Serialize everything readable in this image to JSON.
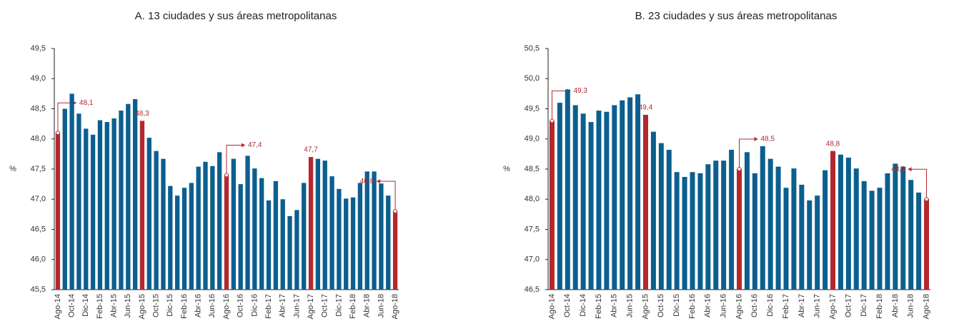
{
  "chart_data": [
    {
      "type": "bar",
      "title": "A. 13 ciudades y sus áreas metropolitanas",
      "y_label": "%",
      "categories": [
        "Ago-14",
        null,
        "Oct-14",
        null,
        "Dic-14",
        null,
        "Feb-15",
        null,
        "Abr-15",
        null,
        "Jun-15",
        null,
        "Ago-15",
        null,
        "Oct-15",
        null,
        "Dic-15",
        null,
        "Feb-16",
        null,
        "Abr-16",
        null,
        "Jun-16",
        null,
        "Ago-16",
        null,
        "Oct-16",
        null,
        "Dic-16",
        null,
        "Feb-17",
        null,
        "Abr-17",
        null,
        "Jun-17",
        null,
        "Ago-17",
        null,
        "Oct-17",
        null,
        "Dic-17",
        null,
        "Feb-18",
        null,
        "Abr-18",
        null,
        "Jun-18",
        null,
        "Ago-18"
      ],
      "values": [
        48.1,
        48.5,
        48.75,
        48.42,
        48.17,
        48.07,
        48.31,
        48.28,
        48.34,
        48.47,
        48.58,
        48.66,
        48.3,
        48.02,
        47.8,
        47.67,
        47.22,
        47.06,
        47.19,
        47.27,
        47.54,
        47.62,
        47.55,
        47.78,
        47.4,
        47.67,
        47.25,
        47.72,
        47.51,
        47.35,
        46.98,
        47.3,
        47.0,
        46.72,
        46.82,
        47.27,
        47.7,
        47.67,
        47.64,
        47.38,
        47.17,
        47.01,
        47.03,
        47.27,
        47.46,
        47.46,
        47.26,
        47.06,
        46.8
      ],
      "value_labels": [
        "48,1",
        null,
        null,
        null,
        null,
        null,
        null,
        null,
        null,
        null,
        null,
        null,
        "48,3",
        null,
        null,
        null,
        null,
        null,
        null,
        null,
        null,
        null,
        null,
        null,
        "47,4",
        null,
        null,
        null,
        null,
        null,
        null,
        null,
        null,
        null,
        null,
        null,
        "47,7",
        null,
        null,
        null,
        null,
        null,
        null,
        null,
        null,
        null,
        null,
        null,
        "46,8"
      ],
      "color": "#0b5f8f",
      "highlight_color": "#b3282d",
      "ylim": [
        45.5,
        49.5
      ],
      "yticks": [
        {
          "value": 45.5,
          "label": "45,5"
        },
        {
          "value": 46,
          "label": "46,0"
        },
        {
          "value": 46.5,
          "label": "46,5"
        },
        {
          "value": 47,
          "label": "47,0"
        },
        {
          "value": 47.5,
          "label": "47,5"
        },
        {
          "value": 48,
          "label": "48,0"
        },
        {
          "value": 48.5,
          "label": "48,5"
        },
        {
          "value": 49,
          "label": "49,0"
        },
        {
          "value": 49.5,
          "label": "49,5"
        }
      ]
    },
    {
      "type": "bar",
      "title": "B. 23 ciudades y sus áreas metropolitanas",
      "y_label": "%",
      "categories": [
        "Ago-14",
        null,
        "Oct-14",
        null,
        "Dic-14",
        null,
        "Feb-15",
        null,
        "Abr-15",
        null,
        "Jun-15",
        null,
        "Ago-15",
        null,
        "Oct-15",
        null,
        "Dic-15",
        null,
        "Feb-16",
        null,
        "Abr-16",
        null,
        "Jun-16",
        null,
        "Ago-16",
        null,
        "Oct-16",
        null,
        "Dic-16",
        null,
        "Feb-17",
        null,
        "Abr-17",
        null,
        "Jun-17",
        null,
        "Ago-17",
        null,
        "Oct-17",
        null,
        "Dic-17",
        null,
        "Feb-18",
        null,
        "Abr-18",
        null,
        "Jun-18",
        null,
        "Ago-18"
      ],
      "values": [
        49.3,
        49.6,
        49.82,
        49.56,
        49.42,
        49.28,
        49.47,
        49.45,
        49.56,
        49.64,
        49.69,
        49.74,
        49.4,
        49.12,
        48.93,
        48.82,
        48.45,
        48.37,
        48.45,
        48.43,
        48.58,
        48.64,
        48.64,
        48.82,
        48.5,
        48.78,
        48.43,
        48.88,
        48.67,
        48.54,
        48.19,
        48.51,
        48.24,
        47.98,
        48.06,
        48.48,
        48.8,
        48.74,
        48.69,
        48.51,
        48.3,
        48.14,
        48.19,
        48.43,
        48.59,
        48.54,
        48.32,
        48.11,
        48.0
      ],
      "value_labels": [
        "49,3",
        null,
        null,
        null,
        null,
        null,
        null,
        null,
        null,
        null,
        null,
        null,
        "49,4",
        null,
        null,
        null,
        null,
        null,
        null,
        null,
        null,
        null,
        null,
        null,
        "48,5",
        null,
        null,
        null,
        null,
        null,
        null,
        null,
        null,
        null,
        null,
        null,
        "48,8",
        null,
        null,
        null,
        null,
        null,
        null,
        null,
        null,
        null,
        null,
        null,
        "48,0"
      ],
      "color": "#0b5f8f",
      "highlight_color": "#b3282d",
      "ylim": [
        46.5,
        50.5
      ],
      "yticks": [
        {
          "value": 46.5,
          "label": "46,5"
        },
        {
          "value": 47,
          "label": "47,0"
        },
        {
          "value": 47.5,
          "label": "47,5"
        },
        {
          "value": 48,
          "label": "48,0"
        },
        {
          "value": 48.5,
          "label": "48,5"
        },
        {
          "value": 49,
          "label": "49,0"
        },
        {
          "value": 49.5,
          "label": "49,5"
        },
        {
          "value": 50,
          "label": "50,0"
        },
        {
          "value": 50.5,
          "label": "50,5"
        }
      ]
    }
  ]
}
